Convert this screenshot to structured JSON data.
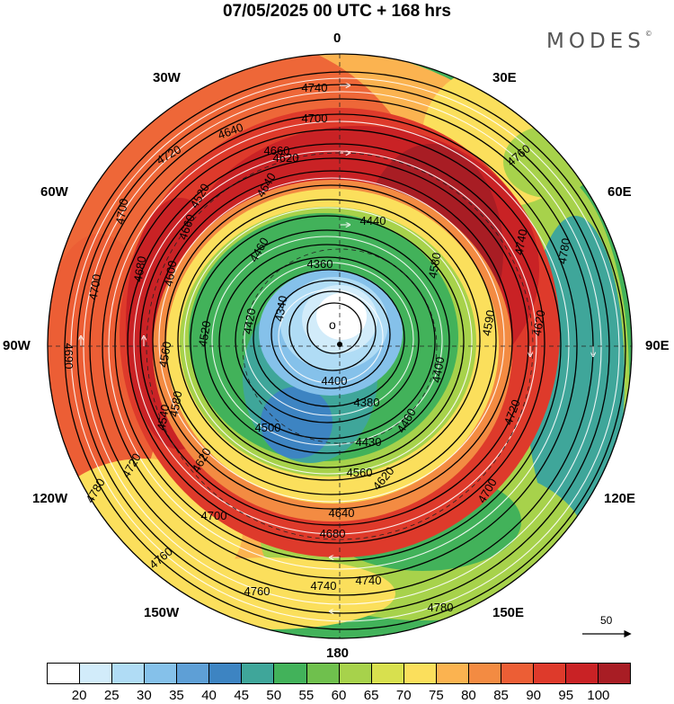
{
  "title": "07/05/2025  00 UTC  + 168 hrs",
  "logo": "MODES",
  "logo_mark": "©",
  "lon_labels": [
    {
      "key": "l0",
      "text": "0"
    },
    {
      "key": "l30e",
      "text": "30E"
    },
    {
      "key": "l60e",
      "text": "60E"
    },
    {
      "key": "l90e",
      "text": "90E"
    },
    {
      "key": "l120e",
      "text": "120E"
    },
    {
      "key": "l150e",
      "text": "150E"
    },
    {
      "key": "l180",
      "text": "180"
    },
    {
      "key": "l150w",
      "text": "150W"
    },
    {
      "key": "l120w",
      "text": "120W"
    },
    {
      "key": "l90w",
      "text": "90W"
    },
    {
      "key": "l60w",
      "text": "60W"
    },
    {
      "key": "l30w",
      "text": "30W"
    }
  ],
  "contour_labels": [
    "4740",
    "4700",
    "4660",
    "4620",
    "4520",
    "4440",
    "4360",
    "4340",
    "4420",
    "4520",
    "4400",
    "4380",
    "4500",
    "4430",
    "4560",
    "4620",
    "4640",
    "4680",
    "4700",
    "4740",
    "4780",
    "4760",
    "4720",
    "4760",
    "4740",
    "4780",
    "4720",
    "4700",
    "4780",
    "4760",
    "4740",
    "4720",
    "4700",
    "4690",
    "4580",
    "4620",
    "4580",
    "4600",
    "4560",
    "4540",
    "4640",
    "4460",
    "4400",
    "4460",
    "4590",
    "4620",
    "4640",
    "4660",
    "4680",
    "4700"
  ],
  "colorbar": {
    "colors": [
      "#ffffff",
      "#d2ecfa",
      "#b0dcf5",
      "#85c1ea",
      "#5e9fd6",
      "#3d84c2",
      "#3fa69a",
      "#42b25a",
      "#6fc04d",
      "#a7d24b",
      "#d8e04e",
      "#fbdf5c",
      "#fbb350",
      "#f38b42",
      "#ec5e35",
      "#de3a2b",
      "#c92225",
      "#a81d24"
    ],
    "ticks": [
      "20",
      "25",
      "30",
      "35",
      "40",
      "45",
      "50",
      "55",
      "60",
      "65",
      "70",
      "75",
      "80",
      "85",
      "90",
      "95",
      "100"
    ]
  },
  "reference_vector": "50"
}
